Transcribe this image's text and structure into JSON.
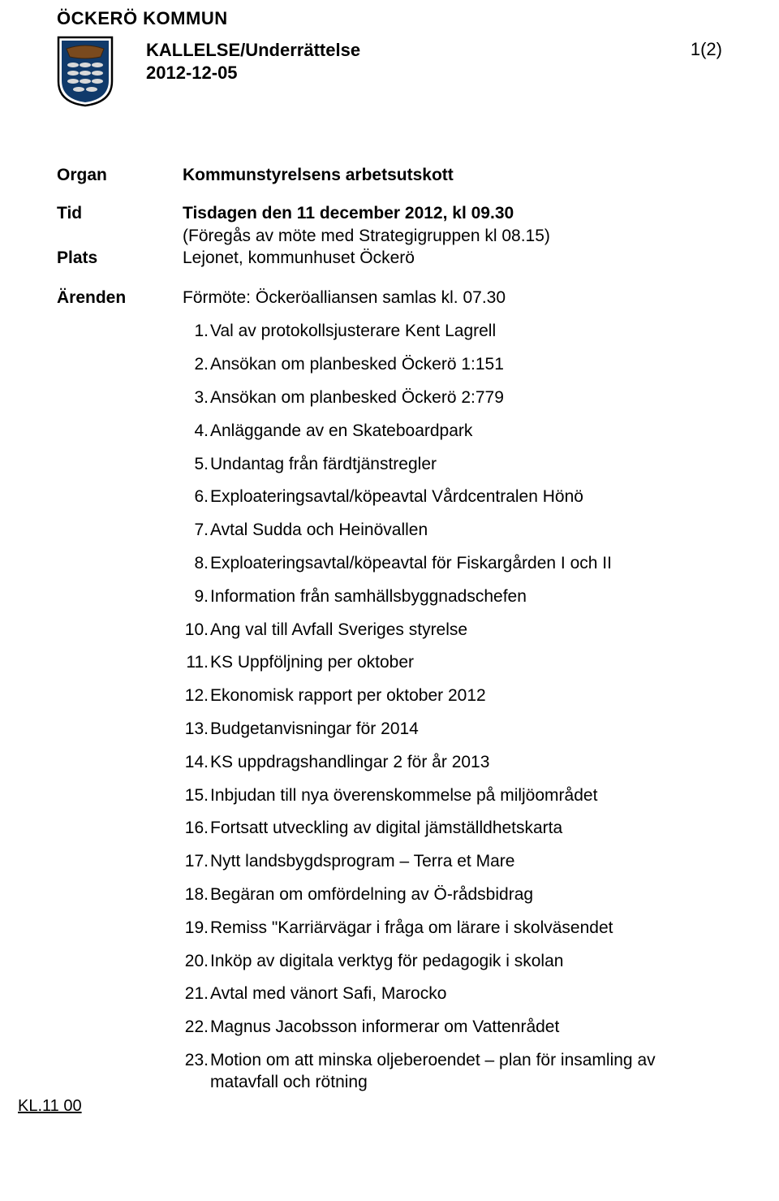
{
  "org_name": "ÖCKERÖ KOMMUN",
  "doc_title_line1": "KALLELSE/Underrättelse",
  "doc_title_line2": "2012-12-05",
  "page_number": "1(2)",
  "labels": {
    "organ": "Organ",
    "tid": "Tid",
    "plats": "Plats",
    "arenden": "Ärenden"
  },
  "organ_value": "Kommunstyrelsens arbetsutskott",
  "tid_line1": "Tisdagen den 11 december 2012, kl 09.30",
  "tid_line2": "(Föregås av möte med Strategigruppen kl 08.15)",
  "plats_value": "Lejonet, kommunhuset Öckerö",
  "arenden_title": "Förmöte: Öckeröalliansen samlas kl. 07.30",
  "items": [
    "Val av protokollsjusterare Kent Lagrell",
    "Ansökan om planbesked Öckerö 1:151",
    "Ansökan om planbesked Öckerö 2:779",
    "Anläggande av en Skateboardpark",
    "Undantag från färdtjänstregler",
    "Exploateringsavtal/köpeavtal Vårdcentralen Hönö",
    "Avtal Sudda och Heinövallen",
    "Exploateringsavtal/köpeavtal för Fiskargården I och II",
    "Information från samhällsbyggnadschefen",
    "Ang val till Avfall Sveriges styrelse",
    "KS Uppföljning per oktober",
    "Ekonomisk rapport per oktober 2012",
    "Budgetanvisningar för 2014",
    "KS uppdragshandlingar 2 för år 2013",
    "Inbjudan till nya överenskommelse på miljöområdet",
    "Fortsatt utveckling av digital jämställdhetskarta",
    "Nytt landsbygdsprogram – Terra et Mare",
    "Begäran om omfördelning av Ö-rådsbidrag",
    "Remiss \"Karriärvägar i fråga om lärare i skolväsendet",
    "Inköp av digitala verktyg för pedagogik i skolan",
    "Avtal med vänort Safi, Marocko",
    "Magnus Jacobsson informerar om Vattenrådet",
    "Motion om att minska oljeberoendet – plan för insamling av matavfall och rötning"
  ],
  "footer_label": "KL.11 00",
  "crest": {
    "shield_fill": "#ffffff",
    "shield_stroke": "#000000",
    "panel_fill": "#103a6b",
    "boat_fill": "#7a4a1e",
    "fish_fill": "#d9d9d9"
  }
}
